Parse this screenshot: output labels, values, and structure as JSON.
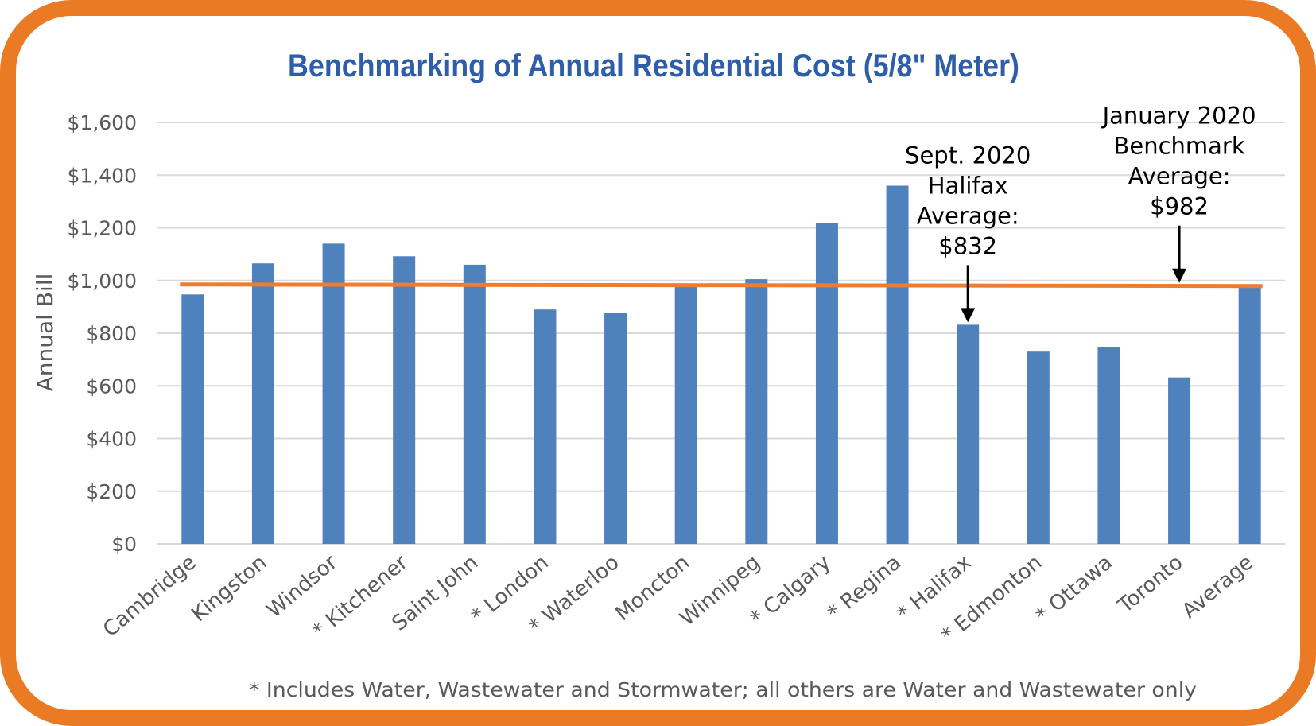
{
  "chart_data": {
    "type": "bar",
    "title": "Benchmarking of Annual Residential Cost (5/8\" Meter)",
    "ylabel": "Annual Bill",
    "xlabel": "",
    "ylim": [
      0,
      1600
    ],
    "yticks": [
      0,
      200,
      400,
      600,
      800,
      1000,
      1200,
      1400,
      1600
    ],
    "ytick_labels": [
      "$0",
      "$200",
      "$400",
      "$600",
      "$800",
      "$1,000",
      "$1,200",
      "$1,400",
      "$1,600"
    ],
    "categories": [
      "Cambridge",
      "Kingston",
      "Windsor",
      "* Kitchener",
      "Saint John",
      "* London",
      "* Waterloo",
      "Moncton",
      "Winnipeg",
      "* Calgary",
      "* Regina",
      "* Halifax",
      "* Edmonton",
      "* Ottawa",
      "Toronto",
      "Average"
    ],
    "values": [
      947,
      1065,
      1140,
      1092,
      1060,
      890,
      878,
      985,
      1005,
      1218,
      1360,
      832,
      730,
      747,
      632,
      982
    ],
    "bar_color": "#4f81bd",
    "grid": true,
    "reference_line": {
      "name": "Benchmark Average",
      "value": 982,
      "color": "#ed7d31"
    },
    "annotations": [
      {
        "lines": [
          "Sept. 2020",
          "Halifax",
          "Average:",
          "$832"
        ],
        "category": "* Halifax",
        "value": 832
      },
      {
        "lines": [
          "January 2020",
          "Benchmark",
          "Average:",
          "$982"
        ],
        "category": "Toronto",
        "value": 982
      }
    ],
    "footnote": "* Includes Water, Wastewater and Stormwater; all others are Water and Wastewater only"
  },
  "colors": {
    "border": "#ea7b24",
    "title": "#2e5ea9",
    "axis_text": "#595959",
    "grid": "#d9d9d9"
  }
}
